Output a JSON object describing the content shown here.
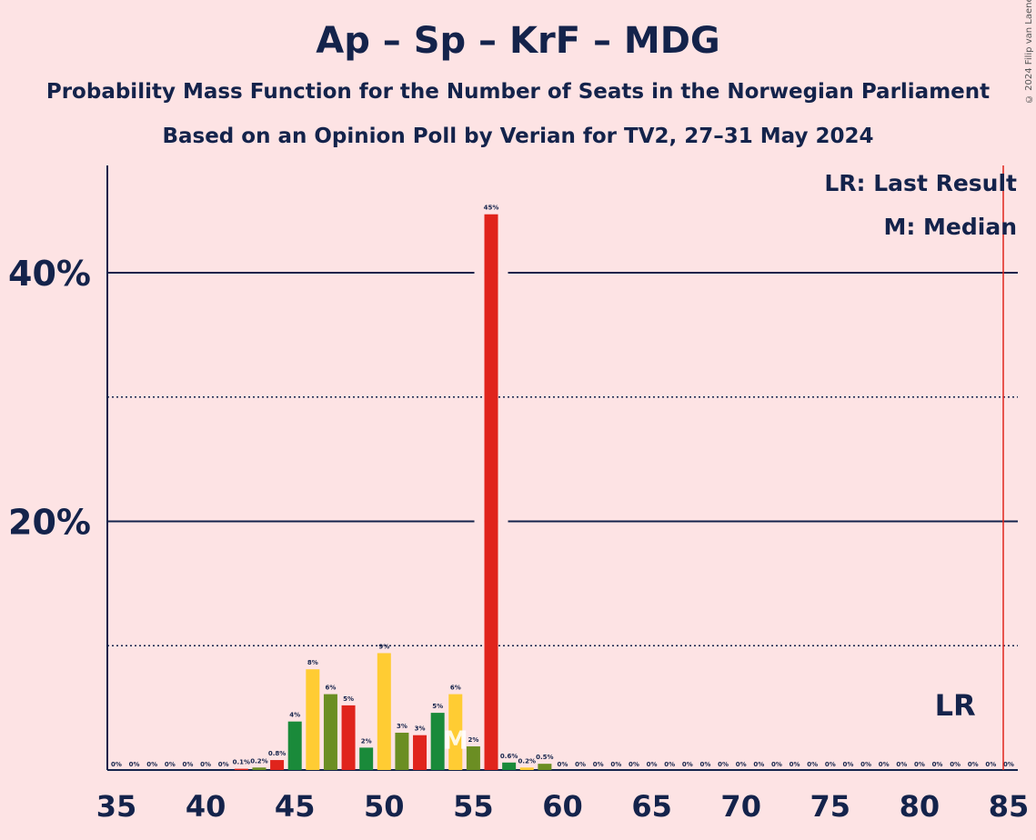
{
  "title": "Ap – Sp – KrF – MDG",
  "subtitle1": "Probability Mass Function for the Number of Seats in the Norwegian Parliament",
  "subtitle2": "Based on an Opinion Poll by Verian for TV2, 27–31 May 2024",
  "copyright": "© 2024 Filip van Laenen",
  "legend": {
    "last_result": "LR: Last Result",
    "median": "M: Median"
  },
  "colors": {
    "background": "#fde3e4",
    "text": "#14234b",
    "last_result_line": "#e0241c"
  },
  "chart_data": {
    "type": "bar",
    "x": [
      35,
      36,
      37,
      38,
      39,
      40,
      41,
      42,
      43,
      44,
      45,
      46,
      47,
      48,
      49,
      50,
      51,
      52,
      53,
      54,
      55,
      56,
      57,
      58,
      59,
      60,
      61,
      62,
      63,
      64,
      65,
      66,
      67,
      68,
      69,
      70,
      71,
      72,
      73,
      74,
      75,
      76,
      77,
      78,
      79,
      80,
      81,
      82,
      83,
      84,
      85
    ],
    "values": [
      0,
      0,
      0,
      0,
      0,
      0,
      0,
      0.1,
      0.2,
      0.8,
      3.9,
      8.1,
      6.1,
      5.2,
      1.8,
      9.4,
      3.0,
      2.8,
      4.6,
      6.1,
      1.9,
      44.7,
      0.6,
      0.2,
      0.5,
      0,
      0,
      0,
      0,
      0,
      0,
      0,
      0,
      0,
      0,
      0,
      0,
      0,
      0,
      0,
      0,
      0,
      0,
      0,
      0,
      0,
      0,
      0,
      0,
      0,
      0
    ],
    "labels": [
      "0%",
      "0%",
      "0%",
      "0%",
      "0%",
      "0%",
      "0%",
      "0.1%",
      "0.2%",
      "0.8%",
      "4%",
      "8%",
      "6%",
      "5%",
      "2%",
      "9%",
      "3%",
      "3%",
      "5%",
      "6%",
      "2%",
      "45%",
      "0.6%",
      "0.2%",
      "0.5%",
      "0%",
      "0%",
      "0%",
      "0%",
      "0%",
      "0%",
      "0%",
      "0%",
      "0%",
      "0%",
      "0%",
      "0%",
      "0%",
      "0%",
      "0%",
      "0%",
      "0%",
      "0%",
      "0%",
      "0%",
      "0%",
      "0%",
      "0%",
      "0%",
      "0%",
      "0%"
    ],
    "bar_colors": [
      "#e0241c",
      "#ffcc33",
      "#6b8e23",
      "#e0241c",
      "#1a8a3a",
      "#ffcc33",
      "#6b8e23",
      "#e0241c",
      "#6b8e23",
      "#e0241c",
      "#1a8a3a",
      "#ffcc33",
      "#6b8e23",
      "#e0241c",
      "#1a8a3a",
      "#ffcc33",
      "#6b8e23",
      "#e0241c",
      "#1a8a3a",
      "#ffcc33",
      "#6b8e23",
      "#e0241c",
      "#1a8a3a",
      "#ffcc33",
      "#6b8e23",
      "#e0241c",
      "#1a8a3a",
      "#ffcc33",
      "#6b8e23",
      "#e0241c",
      "#1a8a3a",
      "#ffcc33",
      "#6b8e23",
      "#e0241c",
      "#1a8a3a",
      "#ffcc33",
      "#6b8e23",
      "#e0241c",
      "#1a8a3a",
      "#ffcc33",
      "#6b8e23",
      "#e0241c",
      "#1a8a3a",
      "#ffcc33",
      "#6b8e23",
      "#e0241c",
      "#1a8a3a",
      "#ffcc33",
      "#6b8e23",
      "#e0241c",
      "#1a8a3a"
    ],
    "x_ticks": [
      35,
      40,
      45,
      50,
      55,
      60,
      65,
      70,
      75,
      80,
      85
    ],
    "y_ticks": [
      {
        "value": 20,
        "label": "20%"
      },
      {
        "value": 40,
        "label": "40%"
      }
    ],
    "minor_gridlines": [
      10,
      30
    ],
    "xlim": [
      35,
      85
    ],
    "ylim": [
      0,
      48.5
    ],
    "median": {
      "x": 54,
      "label": "M"
    },
    "last_result": {
      "x": 85,
      "label": "LR",
      "label_x": 82
    }
  }
}
